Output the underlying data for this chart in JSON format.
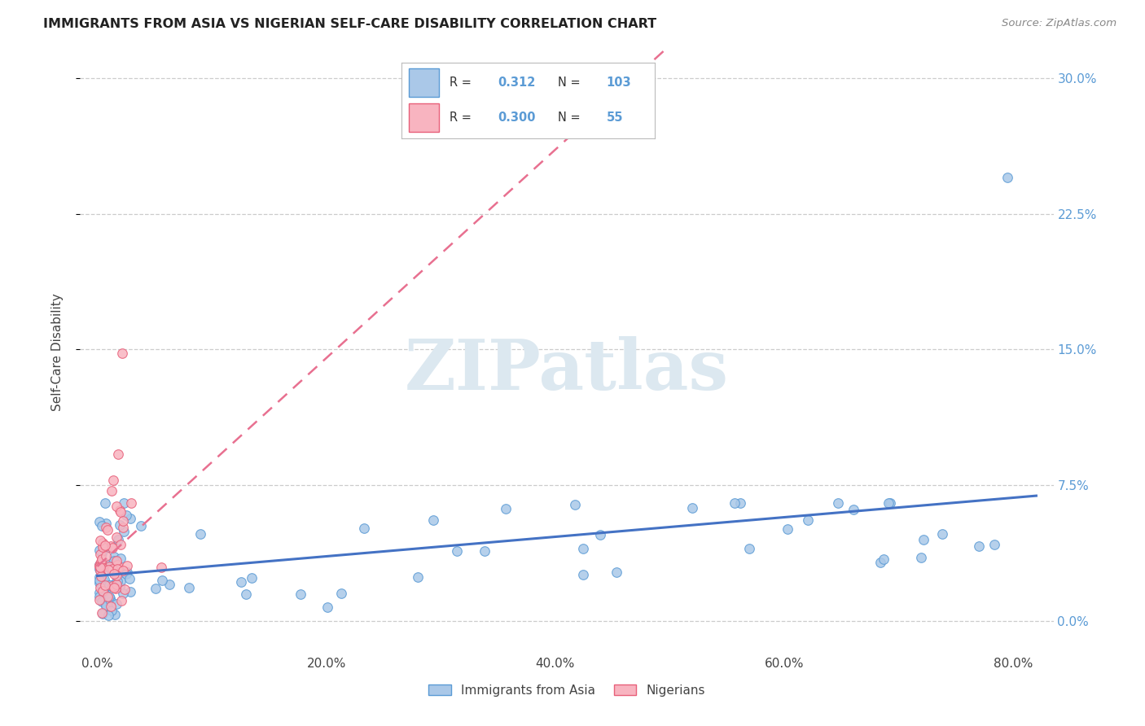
{
  "title": "IMMIGRANTS FROM ASIA VS NIGERIAN SELF-CARE DISABILITY CORRELATION CHART",
  "source": "Source: ZipAtlas.com",
  "ylabel": "Self-Care Disability",
  "asia_color_face": "#aac8e8",
  "asia_color_edge": "#5b9bd5",
  "nigeria_color_face": "#f8b4c0",
  "nigeria_color_edge": "#e8607a",
  "asia_line_color": "#4472c4",
  "nigeria_line_color": "#e87090",
  "tick_color": "#5b9bd5",
  "watermark_color": "#dce8f0",
  "legend_R_asia": "0.312",
  "legend_N_asia": "103",
  "legend_R_nig": "0.300",
  "legend_N_nig": "55",
  "ytick_vals": [
    0.0,
    0.075,
    0.15,
    0.225,
    0.3
  ],
  "ytick_labels": [
    "0.0%",
    "7.5%",
    "15.0%",
    "22.5%",
    "30.0%"
  ],
  "xtick_vals": [
    0.0,
    0.2,
    0.4,
    0.6,
    0.8
  ],
  "xtick_labels": [
    "0.0%",
    "20.0%",
    "40.0%",
    "60.0%",
    "80.0%"
  ],
  "xlim": [
    -0.015,
    0.835
  ],
  "ylim": [
    -0.018,
    0.315
  ]
}
